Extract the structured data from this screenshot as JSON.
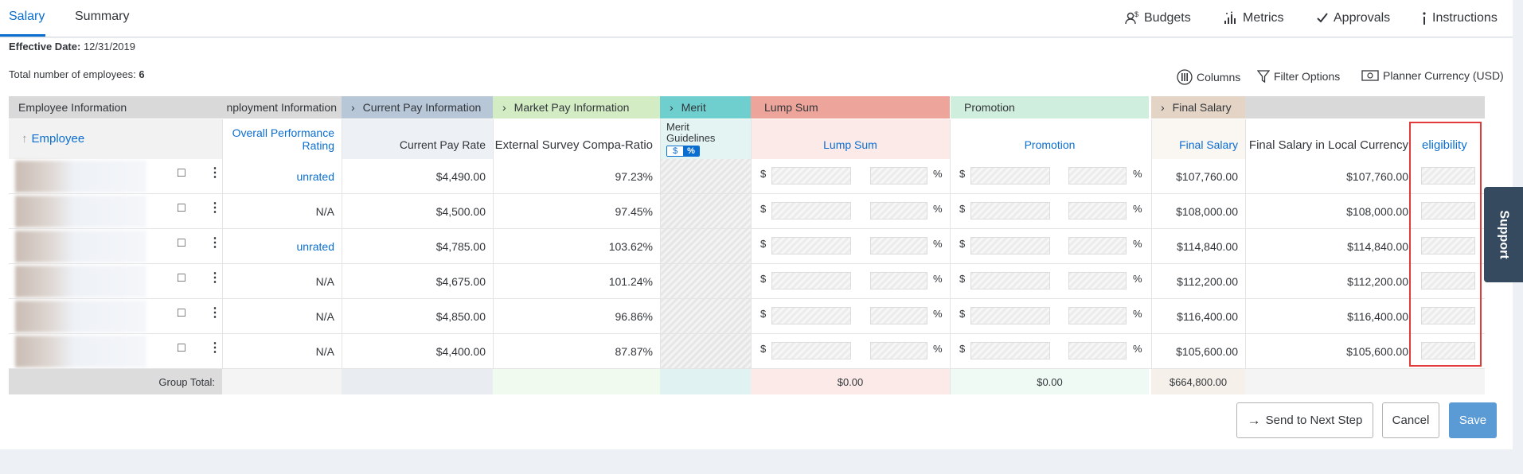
{
  "tabs": {
    "salary": "Salary",
    "summary": "Summary"
  },
  "top_actions": {
    "budgets": "Budgets",
    "metrics": "Metrics",
    "approvals": "Approvals",
    "instructions": "Instructions"
  },
  "effective": {
    "label": "Effective Date:",
    "value": "12/31/2019"
  },
  "total": {
    "label": "Total number of employees:",
    "value": "6"
  },
  "tools": {
    "columns": "Columns",
    "filter": "Filter Options",
    "currency": "Planner Currency (USD)"
  },
  "groups": {
    "employee_info": "Employee Information",
    "employment_info": "nployment Information",
    "current_pay": "Current Pay Information",
    "market_pay": "Market Pay Information",
    "merit": "Merit",
    "lump_sum": "Lump Sum",
    "promotion": "Promotion",
    "final_salary": "Final Salary"
  },
  "columns": {
    "employee": "Employee",
    "overall_perf": "Overall Performance Rating",
    "current_pay_rate": "Current Pay Rate",
    "ext_survey": "External Survey Compa-Ratio",
    "merit_guidelines": "Merit Guidelines",
    "merit_dollar": "$",
    "merit_pct": "%",
    "lump_sum": "Lump Sum",
    "promotion": "Promotion",
    "final_salary": "Final Salary",
    "final_local": "Final Salary in Local Currency",
    "eligibility": "eligibility"
  },
  "rows": [
    {
      "rating": "unrated",
      "pay": "$4,490.00",
      "ratio": "97.23%",
      "final": "$107,760.00",
      "local": "$107,760.00"
    },
    {
      "rating": "N/A",
      "pay": "$4,500.00",
      "ratio": "97.45%",
      "final": "$108,000.00",
      "local": "$108,000.00"
    },
    {
      "rating": "unrated",
      "pay": "$4,785.00",
      "ratio": "103.62%",
      "final": "$114,840.00",
      "local": "$114,840.00"
    },
    {
      "rating": "N/A",
      "pay": "$4,675.00",
      "ratio": "101.24%",
      "final": "$112,200.00",
      "local": "$112,200.00"
    },
    {
      "rating": "N/A",
      "pay": "$4,850.00",
      "ratio": "96.86%",
      "final": "$116,400.00",
      "local": "$116,400.00"
    },
    {
      "rating": "N/A",
      "pay": "$4,400.00",
      "ratio": "87.87%",
      "final": "$105,600.00",
      "local": "$105,600.00"
    }
  ],
  "cur_symbol": "$",
  "pct_symbol": "%",
  "group_total": {
    "label": "Group Total:",
    "lump": "$0.00",
    "promo": "$0.00",
    "final": "$664,800.00"
  },
  "buttons": {
    "send": "Send to Next Step",
    "cancel": "Cancel",
    "save": "Save"
  },
  "support": "Support",
  "colors": {
    "accent": "#0a6ed1",
    "highlight_border": "#e03a3a",
    "current_pay_hdr": "#b7c7d8",
    "market_hdr": "#d3ecc4",
    "merit_hdr": "#6fcfcf",
    "lump_hdr": "#eda59b",
    "promo_hdr": "#cfeede",
    "final_hdr": "#e3d4c5"
  }
}
